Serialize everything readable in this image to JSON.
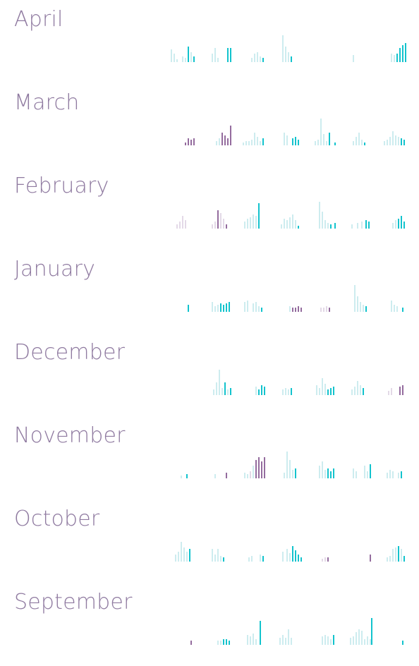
{
  "colors": {
    "label": "#8f7aa0",
    "accent": "#12c3cd",
    "light": "#cdecef",
    "purple": "#946c9e",
    "light_purple": "#e3d9e7"
  },
  "months": [
    {
      "label": "April",
      "bars": [
        [
          242,
          0.45,
          "l"
        ],
        [
          246,
          0.3,
          "l"
        ],
        [
          250,
          0.1,
          "l"
        ],
        [
          258,
          0.2,
          "l"
        ],
        [
          262,
          0.15,
          "l"
        ],
        [
          266,
          0.55,
          "a"
        ],
        [
          270,
          0.35,
          "l"
        ],
        [
          274,
          0.2,
          "a"
        ],
        [
          300,
          0.3,
          "l"
        ],
        [
          304,
          0.5,
          "l"
        ],
        [
          308,
          0.15,
          "l"
        ],
        [
          322,
          0.5,
          "a"
        ],
        [
          326,
          0.5,
          "a"
        ],
        [
          356,
          0.15,
          "l"
        ],
        [
          360,
          0.3,
          "l"
        ],
        [
          364,
          0.35,
          "l"
        ],
        [
          368,
          0.2,
          "l"
        ],
        [
          372,
          0.15,
          "a"
        ],
        [
          400,
          0.95,
          "l"
        ],
        [
          404,
          0.55,
          "l"
        ],
        [
          408,
          0.35,
          "l"
        ],
        [
          412,
          0.2,
          "a"
        ],
        [
          500,
          0.25,
          "l"
        ],
        [
          554,
          0.3,
          "l"
        ],
        [
          558,
          0.25,
          "l"
        ],
        [
          562,
          0.3,
          "a"
        ],
        [
          566,
          0.5,
          "a"
        ],
        [
          570,
          0.6,
          "a"
        ],
        [
          574,
          0.68,
          "a"
        ]
      ]
    },
    {
      "label": "March",
      "bars": [
        [
          262,
          0.1,
          "p"
        ],
        [
          266,
          0.25,
          "p"
        ],
        [
          270,
          0.2,
          "p"
        ],
        [
          274,
          0.25,
          "p"
        ],
        [
          306,
          0.15,
          "l"
        ],
        [
          310,
          0.25,
          "l"
        ],
        [
          314,
          0.45,
          "p"
        ],
        [
          318,
          0.35,
          "p"
        ],
        [
          322,
          0.25,
          "p"
        ],
        [
          326,
          0.7,
          "p"
        ],
        [
          344,
          0.1,
          "l"
        ],
        [
          348,
          0.15,
          "l"
        ],
        [
          352,
          0.15,
          "l"
        ],
        [
          356,
          0.2,
          "l"
        ],
        [
          360,
          0.45,
          "l"
        ],
        [
          364,
          0.3,
          "l"
        ],
        [
          368,
          0.15,
          "l"
        ],
        [
          372,
          0.25,
          "a"
        ],
        [
          402,
          0.45,
          "l"
        ],
        [
          406,
          0.35,
          "l"
        ],
        [
          414,
          0.25,
          "a"
        ],
        [
          418,
          0.3,
          "a"
        ],
        [
          422,
          0.2,
          "a"
        ],
        [
          446,
          0.15,
          "l"
        ],
        [
          450,
          0.2,
          "l"
        ],
        [
          454,
          0.95,
          "l"
        ],
        [
          458,
          0.4,
          "l"
        ],
        [
          462,
          0.15,
          "l"
        ],
        [
          466,
          0.45,
          "a"
        ],
        [
          474,
          0.1,
          "a"
        ],
        [
          500,
          0.15,
          "l"
        ],
        [
          504,
          0.3,
          "l"
        ],
        [
          508,
          0.45,
          "l"
        ],
        [
          512,
          0.2,
          "l"
        ],
        [
          516,
          0.1,
          "a"
        ],
        [
          544,
          0.15,
          "l"
        ],
        [
          548,
          0.2,
          "l"
        ],
        [
          552,
          0.3,
          "l"
        ],
        [
          556,
          0.5,
          "l"
        ],
        [
          560,
          0.35,
          "l"
        ],
        [
          564,
          0.3,
          "l"
        ],
        [
          568,
          0.25,
          "a"
        ],
        [
          572,
          0.2,
          "a"
        ]
      ]
    },
    {
      "label": "February",
      "bars": [
        [
          250,
          0.15,
          "lp"
        ],
        [
          254,
          0.25,
          "lp"
        ],
        [
          258,
          0.45,
          "lp"
        ],
        [
          262,
          0.3,
          "lp"
        ],
        [
          300,
          0.15,
          "lp"
        ],
        [
          304,
          0.25,
          "lp"
        ],
        [
          308,
          0.65,
          "p"
        ],
        [
          312,
          0.55,
          "lp"
        ],
        [
          316,
          0.35,
          "lp"
        ],
        [
          320,
          0.15,
          "p"
        ],
        [
          346,
          0.25,
          "l"
        ],
        [
          350,
          0.35,
          "l"
        ],
        [
          354,
          0.4,
          "l"
        ],
        [
          358,
          0.5,
          "l"
        ],
        [
          362,
          0.45,
          "l"
        ],
        [
          366,
          0.9,
          "a"
        ],
        [
          398,
          0.15,
          "l"
        ],
        [
          402,
          0.35,
          "l"
        ],
        [
          406,
          0.3,
          "l"
        ],
        [
          410,
          0.4,
          "l"
        ],
        [
          414,
          0.5,
          "l"
        ],
        [
          418,
          0.3,
          "l"
        ],
        [
          422,
          0.1,
          "a"
        ],
        [
          452,
          0.95,
          "l"
        ],
        [
          456,
          0.6,
          "l"
        ],
        [
          460,
          0.3,
          "l"
        ],
        [
          464,
          0.2,
          "l"
        ],
        [
          468,
          0.15,
          "a"
        ],
        [
          474,
          0.2,
          "a"
        ],
        [
          498,
          0.15,
          "l"
        ],
        [
          506,
          0.2,
          "l"
        ],
        [
          512,
          0.25,
          "l"
        ],
        [
          518,
          0.3,
          "a"
        ],
        [
          522,
          0.25,
          "a"
        ],
        [
          556,
          0.2,
          "l"
        ],
        [
          560,
          0.3,
          "l"
        ],
        [
          564,
          0.35,
          "a"
        ],
        [
          568,
          0.45,
          "a"
        ],
        [
          572,
          0.25,
          "a"
        ]
      ]
    },
    {
      "label": "January",
      "bars": [
        [
          266,
          0.25,
          "a"
        ],
        [
          300,
          0.35,
          "l"
        ],
        [
          304,
          0.2,
          "l"
        ],
        [
          308,
          0.25,
          "l"
        ],
        [
          312,
          0.3,
          "a"
        ],
        [
          316,
          0.25,
          "a"
        ],
        [
          320,
          0.3,
          "a"
        ],
        [
          324,
          0.35,
          "a"
        ],
        [
          346,
          0.35,
          "l"
        ],
        [
          350,
          0.4,
          "l"
        ],
        [
          358,
          0.3,
          "l"
        ],
        [
          362,
          0.35,
          "l"
        ],
        [
          366,
          0.2,
          "l"
        ],
        [
          370,
          0.15,
          "a"
        ],
        [
          410,
          0.2,
          "l"
        ],
        [
          414,
          0.15,
          "p"
        ],
        [
          418,
          0.15,
          "p"
        ],
        [
          422,
          0.2,
          "p"
        ],
        [
          426,
          0.15,
          "p"
        ],
        [
          454,
          0.15,
          "lp"
        ],
        [
          458,
          0.15,
          "lp"
        ],
        [
          462,
          0.2,
          "lp"
        ],
        [
          466,
          0.15,
          "p"
        ],
        [
          502,
          0.95,
          "l"
        ],
        [
          506,
          0.55,
          "l"
        ],
        [
          510,
          0.35,
          "l"
        ],
        [
          514,
          0.25,
          "l"
        ],
        [
          518,
          0.2,
          "a"
        ],
        [
          554,
          0.4,
          "l"
        ],
        [
          558,
          0.25,
          "l"
        ],
        [
          562,
          0.2,
          "l"
        ],
        [
          570,
          0.15,
          "a"
        ]
      ]
    },
    {
      "label": "December",
      "bars": [
        [
          302,
          0.2,
          "l"
        ],
        [
          306,
          0.45,
          "l"
        ],
        [
          310,
          0.9,
          "l"
        ],
        [
          314,
          0.25,
          "l"
        ],
        [
          318,
          0.45,
          "a"
        ],
        [
          322,
          0.2,
          "l"
        ],
        [
          326,
          0.25,
          "a"
        ],
        [
          362,
          0.3,
          "l"
        ],
        [
          366,
          0.2,
          "a"
        ],
        [
          370,
          0.35,
          "a"
        ],
        [
          374,
          0.3,
          "a"
        ],
        [
          400,
          0.2,
          "l"
        ],
        [
          404,
          0.25,
          "l"
        ],
        [
          408,
          0.2,
          "l"
        ],
        [
          412,
          0.25,
          "a"
        ],
        [
          448,
          0.35,
          "l"
        ],
        [
          452,
          0.25,
          "l"
        ],
        [
          456,
          0.6,
          "l"
        ],
        [
          460,
          0.4,
          "l"
        ],
        [
          464,
          0.2,
          "a"
        ],
        [
          468,
          0.25,
          "a"
        ],
        [
          472,
          0.3,
          "a"
        ],
        [
          498,
          0.2,
          "l"
        ],
        [
          502,
          0.3,
          "l"
        ],
        [
          506,
          0.5,
          "l"
        ],
        [
          510,
          0.35,
          "l"
        ],
        [
          514,
          0.25,
          "a"
        ],
        [
          550,
          0.15,
          "lp"
        ],
        [
          554,
          0.25,
          "lp"
        ],
        [
          566,
          0.3,
          "p"
        ],
        [
          570,
          0.35,
          "p"
        ]
      ]
    },
    {
      "label": "November",
      "bars": [
        [
          256,
          0.1,
          "l"
        ],
        [
          264,
          0.15,
          "a"
        ],
        [
          304,
          0.15,
          "l"
        ],
        [
          320,
          0.2,
          "p"
        ],
        [
          346,
          0.2,
          "l"
        ],
        [
          350,
          0.15,
          "l"
        ],
        [
          354,
          0.25,
          "lp"
        ],
        [
          358,
          0.45,
          "l"
        ],
        [
          362,
          0.65,
          "p"
        ],
        [
          366,
          0.75,
          "p"
        ],
        [
          370,
          0.6,
          "p"
        ],
        [
          374,
          0.75,
          "p"
        ],
        [
          402,
          0.2,
          "l"
        ],
        [
          406,
          0.95,
          "l"
        ],
        [
          410,
          0.65,
          "l"
        ],
        [
          414,
          0.3,
          "l"
        ],
        [
          418,
          0.35,
          "a"
        ],
        [
          452,
          0.45,
          "l"
        ],
        [
          456,
          0.6,
          "l"
        ],
        [
          460,
          0.3,
          "l"
        ],
        [
          464,
          0.35,
          "a"
        ],
        [
          468,
          0.25,
          "a"
        ],
        [
          472,
          0.35,
          "a"
        ],
        [
          500,
          0.35,
          "l"
        ],
        [
          504,
          0.25,
          "l"
        ],
        [
          516,
          0.45,
          "l"
        ],
        [
          520,
          0.25,
          "l"
        ],
        [
          524,
          0.5,
          "a"
        ],
        [
          548,
          0.2,
          "l"
        ],
        [
          552,
          0.3,
          "l"
        ],
        [
          556,
          0.25,
          "l"
        ],
        [
          564,
          0.2,
          "l"
        ],
        [
          568,
          0.25,
          "a"
        ]
      ]
    },
    {
      "label": "October",
      "bars": [
        [
          248,
          0.25,
          "l"
        ],
        [
          252,
          0.35,
          "l"
        ],
        [
          256,
          0.7,
          "l"
        ],
        [
          260,
          0.5,
          "l"
        ],
        [
          264,
          0.35,
          "l"
        ],
        [
          268,
          0.45,
          "a"
        ],
        [
          300,
          0.45,
          "l"
        ],
        [
          304,
          0.25,
          "l"
        ],
        [
          308,
          0.45,
          "l"
        ],
        [
          312,
          0.2,
          "l"
        ],
        [
          316,
          0.15,
          "a"
        ],
        [
          352,
          0.15,
          "l"
        ],
        [
          356,
          0.2,
          "l"
        ],
        [
          368,
          0.25,
          "l"
        ],
        [
          372,
          0.2,
          "a"
        ],
        [
          400,
          0.35,
          "l"
        ],
        [
          406,
          0.45,
          "l"
        ],
        [
          410,
          0.3,
          "l"
        ],
        [
          414,
          0.55,
          "a"
        ],
        [
          418,
          0.4,
          "a"
        ],
        [
          422,
          0.25,
          "a"
        ],
        [
          426,
          0.15,
          "a"
        ],
        [
          456,
          0.1,
          "lp"
        ],
        [
          460,
          0.15,
          "lp"
        ],
        [
          464,
          0.15,
          "p"
        ],
        [
          524,
          0.25,
          "p"
        ],
        [
          548,
          0.15,
          "l"
        ],
        [
          552,
          0.2,
          "l"
        ],
        [
          556,
          0.45,
          "l"
        ],
        [
          560,
          0.5,
          "l"
        ],
        [
          564,
          0.55,
          "a"
        ],
        [
          568,
          0.45,
          "l"
        ],
        [
          572,
          0.2,
          "a"
        ]
      ]
    },
    {
      "label": "September",
      "bars": [
        [
          270,
          0.15,
          "p"
        ],
        [
          308,
          0.15,
          "l"
        ],
        [
          312,
          0.15,
          "l"
        ],
        [
          316,
          0.2,
          "a"
        ],
        [
          320,
          0.2,
          "a"
        ],
        [
          324,
          0.15,
          "a"
        ],
        [
          350,
          0.35,
          "l"
        ],
        [
          354,
          0.3,
          "l"
        ],
        [
          358,
          0.4,
          "l"
        ],
        [
          362,
          0.2,
          "l"
        ],
        [
          368,
          0.85,
          "a"
        ],
        [
          396,
          0.25,
          "l"
        ],
        [
          400,
          0.35,
          "l"
        ],
        [
          404,
          0.25,
          "l"
        ],
        [
          408,
          0.55,
          "l"
        ],
        [
          412,
          0.25,
          "l"
        ],
        [
          456,
          0.3,
          "l"
        ],
        [
          460,
          0.35,
          "l"
        ],
        [
          464,
          0.3,
          "l"
        ],
        [
          468,
          0.2,
          "l"
        ],
        [
          472,
          0.35,
          "a"
        ],
        [
          496,
          0.25,
          "l"
        ],
        [
          500,
          0.3,
          "l"
        ],
        [
          504,
          0.45,
          "l"
        ],
        [
          508,
          0.55,
          "l"
        ],
        [
          512,
          0.5,
          "l"
        ],
        [
          516,
          0.2,
          "l"
        ],
        [
          520,
          0.3,
          "l"
        ],
        [
          524,
          0.2,
          "l"
        ],
        [
          526,
          0.95,
          "a"
        ],
        [
          570,
          0.15,
          "a"
        ]
      ]
    }
  ]
}
